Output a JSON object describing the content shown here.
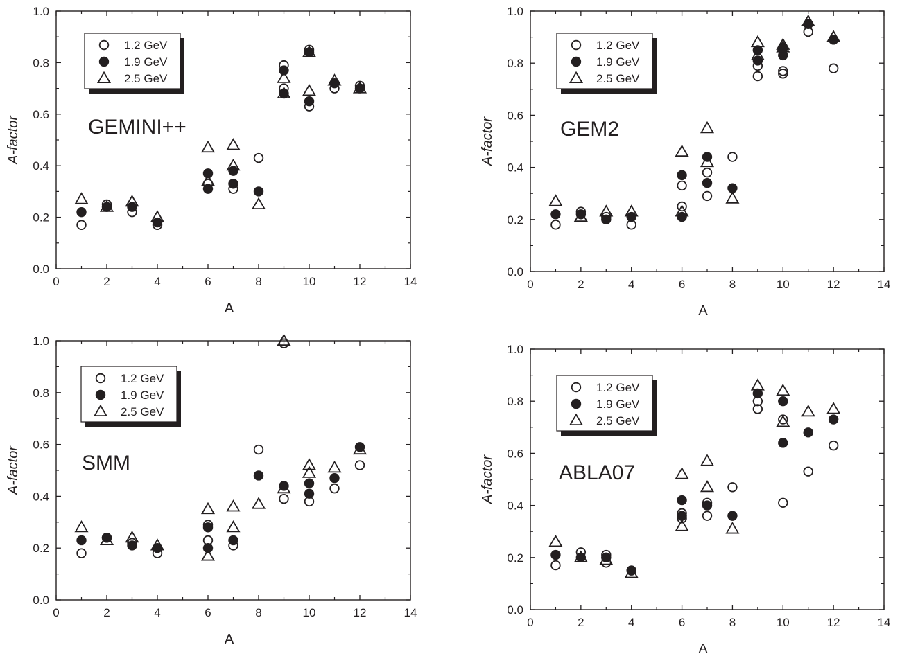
{
  "chart_data": [
    {
      "type": "scatter",
      "model_label": "GEMINI++",
      "xlabel": "A",
      "ylabel": "A-factor",
      "xlim": [
        0,
        14
      ],
      "ylim": [
        0,
        1.0
      ],
      "xticks": [
        "0",
        "2",
        "4",
        "6",
        "8",
        "10",
        "12",
        "14"
      ],
      "yticks": [
        "0.0",
        "0.2",
        "0.4",
        "0.6",
        "0.8",
        "1.0"
      ],
      "grid": false,
      "legend_position": "top-left",
      "series": [
        {
          "name": "1.2 GeV",
          "marker": "open-circle",
          "points": [
            [
              1,
              0.17
            ],
            [
              2,
              0.25
            ],
            [
              3,
              0.22
            ],
            [
              4,
              0.17
            ],
            [
              6,
              0.33
            ],
            [
              7,
              0.31
            ],
            [
              8,
              0.43
            ],
            [
              9,
              0.79
            ],
            [
              9,
              0.7
            ],
            [
              10,
              0.85
            ],
            [
              10,
              0.63
            ],
            [
              11,
              0.7
            ],
            [
              12,
              0.71
            ]
          ]
        },
        {
          "name": "1.9 GeV",
          "marker": "filled-circle",
          "points": [
            [
              1,
              0.22
            ],
            [
              2,
              0.24
            ],
            [
              3,
              0.24
            ],
            [
              4,
              0.18
            ],
            [
              6,
              0.37
            ],
            [
              6,
              0.31
            ],
            [
              7,
              0.38
            ],
            [
              7,
              0.33
            ],
            [
              8,
              0.3
            ],
            [
              9,
              0.77
            ],
            [
              9,
              0.68
            ],
            [
              10,
              0.84
            ],
            [
              10,
              0.65
            ],
            [
              11,
              0.72
            ],
            [
              12,
              0.7
            ]
          ]
        },
        {
          "name": "2.5 GeV",
          "marker": "open-triangle",
          "points": [
            [
              1,
              0.27
            ],
            [
              2,
              0.24
            ],
            [
              3,
              0.26
            ],
            [
              4,
              0.2
            ],
            [
              6,
              0.47
            ],
            [
              6,
              0.34
            ],
            [
              7,
              0.48
            ],
            [
              7,
              0.4
            ],
            [
              8,
              0.25
            ],
            [
              9,
              0.74
            ],
            [
              9,
              0.68
            ],
            [
              10,
              0.84
            ],
            [
              10,
              0.69
            ],
            [
              11,
              0.73
            ],
            [
              12,
              0.7
            ]
          ]
        }
      ]
    },
    {
      "type": "scatter",
      "model_label": "GEM2",
      "xlabel": "A",
      "ylabel": "A-factor",
      "xlim": [
        0,
        14
      ],
      "ylim": [
        0,
        1.0
      ],
      "xticks": [
        "0",
        "2",
        "4",
        "6",
        "8",
        "10",
        "12",
        "14"
      ],
      "yticks": [
        "0.0",
        "0.2",
        "0.4",
        "0.6",
        "0.8",
        "1.0"
      ],
      "grid": false,
      "legend_position": "top-left",
      "series": [
        {
          "name": "1.2 GeV",
          "marker": "open-circle",
          "points": [
            [
              1,
              0.18
            ],
            [
              2,
              0.23
            ],
            [
              3,
              0.21
            ],
            [
              4,
              0.18
            ],
            [
              6,
              0.33
            ],
            [
              6,
              0.25
            ],
            [
              7,
              0.38
            ],
            [
              7,
              0.29
            ],
            [
              8,
              0.44
            ],
            [
              9,
              0.79
            ],
            [
              9,
              0.75
            ],
            [
              10,
              0.77
            ],
            [
              10,
              0.76
            ],
            [
              11,
              0.92
            ],
            [
              12,
              0.78
            ]
          ]
        },
        {
          "name": "1.9 GeV",
          "marker": "filled-circle",
          "points": [
            [
              1,
              0.22
            ],
            [
              2,
              0.22
            ],
            [
              3,
              0.2
            ],
            [
              4,
              0.21
            ],
            [
              6,
              0.37
            ],
            [
              6,
              0.21
            ],
            [
              7,
              0.44
            ],
            [
              7,
              0.34
            ],
            [
              8,
              0.32
            ],
            [
              9,
              0.85
            ],
            [
              9,
              0.81
            ],
            [
              10,
              0.86
            ],
            [
              10,
              0.83
            ],
            [
              11,
              0.95
            ],
            [
              12,
              0.89
            ]
          ]
        },
        {
          "name": "2.5 GeV",
          "marker": "open-triangle",
          "points": [
            [
              1,
              0.27
            ],
            [
              2,
              0.21
            ],
            [
              3,
              0.23
            ],
            [
              4,
              0.23
            ],
            [
              6,
              0.46
            ],
            [
              6,
              0.23
            ],
            [
              7,
              0.55
            ],
            [
              7,
              0.42
            ],
            [
              8,
              0.28
            ],
            [
              9,
              0.88
            ],
            [
              9,
              0.83
            ],
            [
              10,
              0.87
            ],
            [
              10,
              0.86
            ],
            [
              11,
              0.96
            ],
            [
              12,
              0.9
            ]
          ]
        }
      ]
    },
    {
      "type": "scatter",
      "model_label": "SMM",
      "xlabel": "A",
      "ylabel": "A-factor",
      "xlim": [
        0,
        14
      ],
      "ylim": [
        0,
        1.0
      ],
      "xticks": [
        "0",
        "2",
        "4",
        "6",
        "8",
        "10",
        "12",
        "14"
      ],
      "yticks": [
        "0.0",
        "0.2",
        "0.4",
        "0.6",
        "0.8",
        "1.0"
      ],
      "grid": false,
      "legend_position": "top-left",
      "series": [
        {
          "name": "1.2 GeV",
          "marker": "open-circle",
          "points": [
            [
              1,
              0.18
            ],
            [
              2,
              0.24
            ],
            [
              3,
              0.22
            ],
            [
              4,
              0.18
            ],
            [
              6,
              0.29
            ],
            [
              6,
              0.23
            ],
            [
              7,
              0.21
            ],
            [
              8,
              0.58
            ],
            [
              9,
              0.39
            ],
            [
              9,
              0.99
            ],
            [
              10,
              0.38
            ],
            [
              11,
              0.43
            ],
            [
              12,
              0.52
            ]
          ]
        },
        {
          "name": "1.9 GeV",
          "marker": "filled-circle",
          "points": [
            [
              1,
              0.23
            ],
            [
              2,
              0.24
            ],
            [
              3,
              0.21
            ],
            [
              4,
              0.2
            ],
            [
              6,
              0.28
            ],
            [
              6,
              0.2
            ],
            [
              7,
              0.23
            ],
            [
              8,
              0.48
            ],
            [
              9,
              0.44
            ],
            [
              10,
              0.45
            ],
            [
              10,
              0.41
            ],
            [
              11,
              0.47
            ],
            [
              12,
              0.59
            ]
          ]
        },
        {
          "name": "2.5 GeV",
          "marker": "open-triangle",
          "points": [
            [
              1,
              0.28
            ],
            [
              2,
              0.23
            ],
            [
              3,
              0.24
            ],
            [
              4,
              0.21
            ],
            [
              6,
              0.35
            ],
            [
              6,
              0.17
            ],
            [
              7,
              0.36
            ],
            [
              7,
              0.28
            ],
            [
              8,
              0.37
            ],
            [
              9,
              0.43
            ],
            [
              9,
              1.0
            ],
            [
              10,
              0.52
            ],
            [
              10,
              0.49
            ],
            [
              11,
              0.51
            ],
            [
              12,
              0.58
            ]
          ]
        }
      ]
    },
    {
      "type": "scatter",
      "model_label": "ABLA07",
      "xlabel": "A",
      "ylabel": "A-factor",
      "xlim": [
        0,
        14
      ],
      "ylim": [
        0,
        1.0
      ],
      "xticks": [
        "0",
        "2",
        "4",
        "6",
        "8",
        "10",
        "12",
        "14"
      ],
      "yticks": [
        "0.0",
        "0.2",
        "0.4",
        "0.6",
        "0.8",
        "1.0"
      ],
      "grid": false,
      "legend_position": "top-left",
      "series": [
        {
          "name": "1.2 GeV",
          "marker": "open-circle",
          "points": [
            [
              1,
              0.17
            ],
            [
              2,
              0.22
            ],
            [
              3,
              0.18
            ],
            [
              3,
              0.21
            ],
            [
              4,
              0.15
            ],
            [
              6,
              0.37
            ],
            [
              6,
              0.35
            ],
            [
              7,
              0.41
            ],
            [
              7,
              0.36
            ],
            [
              8,
              0.47
            ],
            [
              9,
              0.8
            ],
            [
              9,
              0.77
            ],
            [
              10,
              0.73
            ],
            [
              10,
              0.41
            ],
            [
              11,
              0.53
            ],
            [
              12,
              0.63
            ]
          ]
        },
        {
          "name": "1.9 GeV",
          "marker": "filled-circle",
          "points": [
            [
              1,
              0.21
            ],
            [
              2,
              0.2
            ],
            [
              3,
              0.2
            ],
            [
              4,
              0.15
            ],
            [
              6,
              0.42
            ],
            [
              6,
              0.36
            ],
            [
              7,
              0.4
            ],
            [
              8,
              0.36
            ],
            [
              9,
              0.83
            ],
            [
              10,
              0.8
            ],
            [
              10,
              0.64
            ],
            [
              11,
              0.68
            ],
            [
              12,
              0.73
            ]
          ]
        },
        {
          "name": "2.5 GeV",
          "marker": "open-triangle",
          "points": [
            [
              1,
              0.26
            ],
            [
              2,
              0.2
            ],
            [
              3,
              0.19
            ],
            [
              4,
              0.14
            ],
            [
              6,
              0.52
            ],
            [
              6,
              0.32
            ],
            [
              7,
              0.57
            ],
            [
              7,
              0.47
            ],
            [
              8,
              0.31
            ],
            [
              9,
              0.86
            ],
            [
              10,
              0.84
            ],
            [
              10,
              0.72
            ],
            [
              11,
              0.76
            ],
            [
              12,
              0.77
            ]
          ]
        }
      ]
    }
  ]
}
